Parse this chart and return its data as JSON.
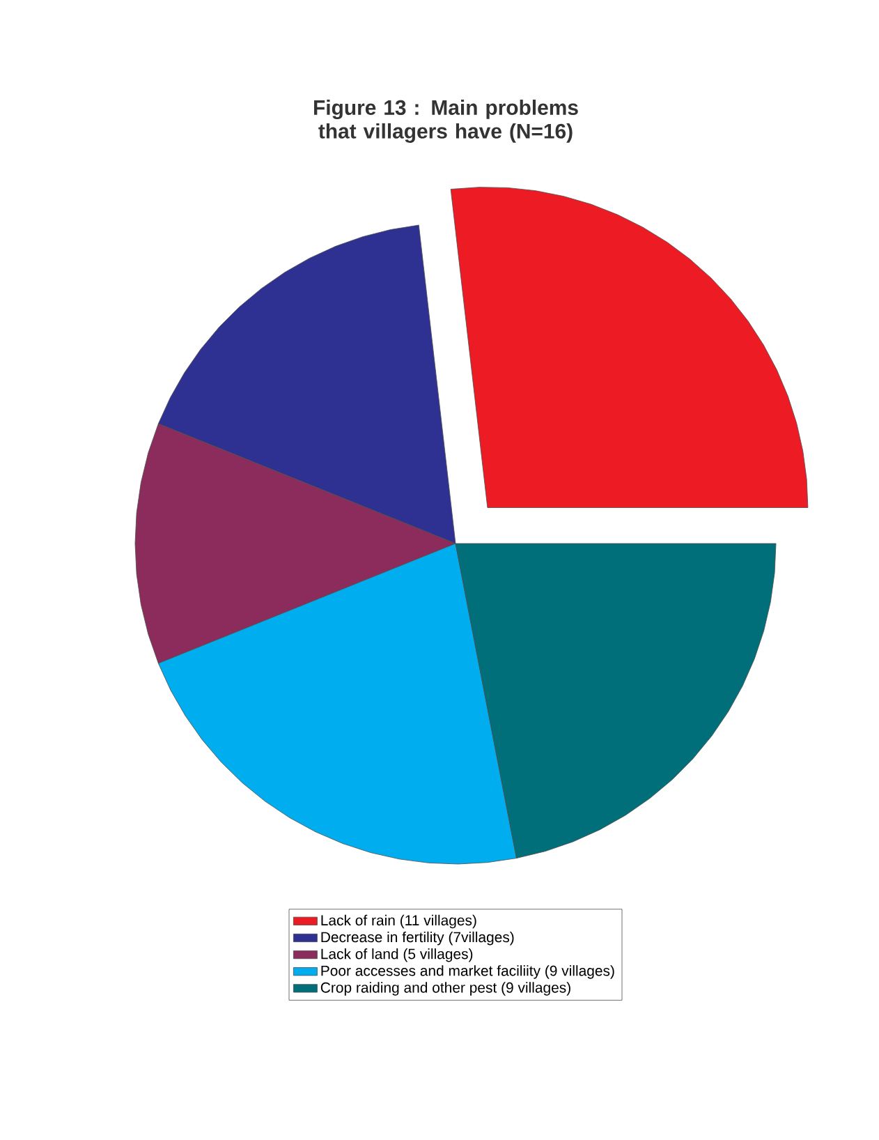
{
  "chart_data": {
    "type": "pie",
    "title": "Figure 13 : Main problems that villagers have (N=16)",
    "categories": [
      "Lack of rain (11 villages)",
      "Decrease in fertility (7villages)",
      "Lack of land (5 villages)",
      "Poor accesses and market faciliity (9 villages)",
      "Crop raiding and other pest (9 villages)"
    ],
    "values": [
      11,
      7,
      5,
      9,
      9
    ],
    "colors": [
      "#ed1c24",
      "#2e3192",
      "#8b2c5c",
      "#00aeef",
      "#006f7a"
    ],
    "legend": "bottom"
  }
}
